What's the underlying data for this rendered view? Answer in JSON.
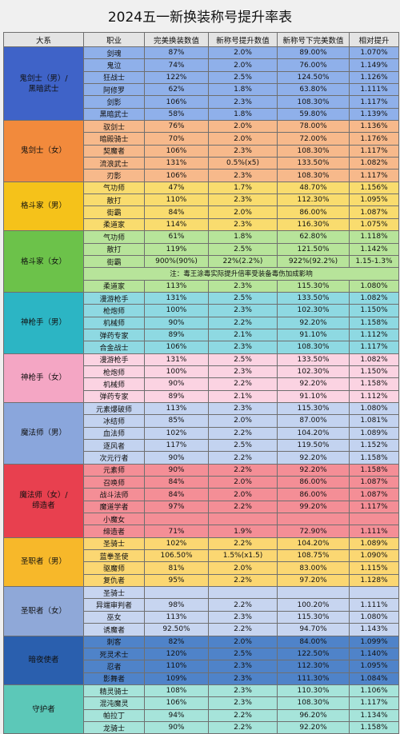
{
  "title": "2024五一新换装称号提升率表",
  "headers": [
    "大系",
    "职业",
    "完美换装数值",
    "新称号提升数值",
    "新称号下完美数值",
    "相对提升"
  ],
  "groups": [
    {
      "name": "鬼剑士（男）/\n黑暗武士",
      "group_color": "#3f63c8",
      "row_color": "#8fb0ea",
      "rows": [
        [
          "剑魂",
          "87%",
          "2.0%",
          "89.00%",
          "1.070%"
        ],
        [
          "鬼泣",
          "74%",
          "2.0%",
          "76.00%",
          "1.149%"
        ],
        [
          "狂战士",
          "122%",
          "2.5%",
          "124.50%",
          "1.126%"
        ],
        [
          "阿修罗",
          "62%",
          "1.8%",
          "63.80%",
          "1.111%"
        ],
        [
          "剑影",
          "106%",
          "2.3%",
          "108.30%",
          "1.117%"
        ],
        [
          "黑暗武士",
          "58%",
          "1.8%",
          "59.80%",
          "1.139%"
        ]
      ]
    },
    {
      "name": "鬼剑士（女）",
      "group_color": "#f28a3c",
      "row_color": "#f7b98b",
      "rows": [
        [
          "驭剑士",
          "76%",
          "2.0%",
          "78.00%",
          "1.136%"
        ],
        [
          "暗殿骑士",
          "70%",
          "2.0%",
          "72.00%",
          "1.176%"
        ],
        [
          "契魔者",
          "106%",
          "2.3%",
          "108.30%",
          "1.117%"
        ],
        [
          "流浪武士",
          "131%",
          "0.5%(x5)",
          "133.50%",
          "1.082%"
        ],
        [
          "刃影",
          "106%",
          "2.3%",
          "108.30%",
          "1.117%"
        ]
      ]
    },
    {
      "name": "格斗家（男）",
      "group_color": "#f5c21a",
      "row_color": "#f9dc6e",
      "rows": [
        [
          "气功师",
          "47%",
          "1.7%",
          "48.70%",
          "1.156%"
        ],
        [
          "散打",
          "110%",
          "2.3%",
          "112.30%",
          "1.095%"
        ],
        [
          "街霸",
          "84%",
          "2.0%",
          "86.00%",
          "1.087%"
        ],
        [
          "柔道家",
          "114%",
          "2.3%",
          "116.30%",
          "1.075%"
        ]
      ]
    },
    {
      "name": "格斗家（女）",
      "group_color": "#6cc24a",
      "row_color": "#b7e49a",
      "rows": [
        [
          "气功师",
          "61%",
          "1.8%",
          "62.80%",
          "1.118%"
        ],
        [
          "散打",
          "119%",
          "2.5%",
          "121.50%",
          "1.142%"
        ],
        [
          "街霸",
          "900%(90%)",
          "22%(2.2%)",
          "922%(92.2%)",
          "1.15-1.3%"
        ],
        {
          "note": "注：毒王涂毒实际提升倍率受装备毒伤加成影响"
        },
        [
          "柔道家",
          "113%",
          "2.3%",
          "115.30%",
          "1.080%"
        ]
      ]
    },
    {
      "name": "神枪手（男）",
      "group_color": "#2cb5c4",
      "row_color": "#8ed9e2",
      "rows": [
        [
          "漫游枪手",
          "131%",
          "2.5%",
          "133.50%",
          "1.082%"
        ],
        [
          "枪炮师",
          "100%",
          "2.3%",
          "102.30%",
          "1.150%"
        ],
        [
          "机械师",
          "90%",
          "2.2%",
          "92.20%",
          "1.158%"
        ],
        [
          "弹药专家",
          "89%",
          "2.1%",
          "91.10%",
          "1.112%"
        ],
        [
          "合金战士",
          "106%",
          "2.3%",
          "108.30%",
          "1.117%"
        ]
      ]
    },
    {
      "name": "神枪手（女）",
      "group_color": "#f4a6c4",
      "row_color": "#fbd3e2",
      "rows": [
        [
          "漫游枪手",
          "131%",
          "2.5%",
          "133.50%",
          "1.082%"
        ],
        [
          "枪炮师",
          "100%",
          "2.3%",
          "102.30%",
          "1.150%"
        ],
        [
          "机械师",
          "90%",
          "2.2%",
          "92.20%",
          "1.158%"
        ],
        [
          "弹药专家",
          "89%",
          "2.1%",
          "91.10%",
          "1.112%"
        ]
      ]
    },
    {
      "name": "魔法师（男）",
      "group_color": "#8aa6dc",
      "row_color": "#c3d3f0",
      "rows": [
        [
          "元素爆破师",
          "113%",
          "2.3%",
          "115.30%",
          "1.080%"
        ],
        [
          "冰结师",
          "85%",
          "2.0%",
          "87.00%",
          "1.081%"
        ],
        [
          "血法师",
          "102%",
          "2.2%",
          "104.20%",
          "1.089%"
        ],
        [
          "逐风者",
          "117%",
          "2.5%",
          "119.50%",
          "1.152%"
        ],
        [
          "次元行者",
          "90%",
          "2.2%",
          "92.20%",
          "1.158%"
        ]
      ]
    },
    {
      "name": "魔法师（女）/\n缔造者",
      "group_color": "#e8404f",
      "row_color": "#f48e96",
      "rows": [
        [
          "元素师",
          "90%",
          "2.2%",
          "92.20%",
          "1.158%"
        ],
        [
          "召唤师",
          "84%",
          "2.0%",
          "86.00%",
          "1.087%"
        ],
        [
          "战斗法师",
          "84%",
          "2.0%",
          "86.00%",
          "1.087%"
        ],
        [
          "魔道学者",
          "97%",
          "2.2%",
          "99.20%",
          "1.117%"
        ],
        [
          "小魔女",
          "",
          "",
          "",
          ""
        ],
        [
          "缔造者",
          "71%",
          "1.9%",
          "72.90%",
          "1.111%"
        ]
      ]
    },
    {
      "name": "圣职者（男）",
      "group_color": "#f7b82a",
      "row_color": "#fbd772",
      "rows": [
        [
          "圣骑士",
          "102%",
          "2.2%",
          "104.20%",
          "1.089%"
        ],
        [
          "蓝拳圣使",
          "106.50%",
          "1.5%(x1.5)",
          "108.75%",
          "1.090%"
        ],
        [
          "驱魔师",
          "81%",
          "2.0%",
          "83.00%",
          "1.115%"
        ],
        [
          "复仇者",
          "95%",
          "2.2%",
          "97.20%",
          "1.128%"
        ]
      ]
    },
    {
      "name": "圣职者（女）",
      "group_color": "#8fa8d8",
      "row_color": "#c7d5f0",
      "rows": [
        [
          "圣骑士",
          "",
          "",
          "",
          ""
        ],
        [
          "异端审判者",
          "98%",
          "2.2%",
          "100.20%",
          "1.111%"
        ],
        [
          "巫女",
          "113%",
          "2.3%",
          "115.30%",
          "1.080%"
        ],
        [
          "诱魔者",
          "92.50%",
          "2.2%",
          "94.70%",
          "1.143%"
        ]
      ]
    },
    {
      "name": "暗夜使者",
      "group_color": "#2a5fae",
      "row_color": "#4f83c9",
      "rows": [
        [
          "刺客",
          "82%",
          "2.0%",
          "84.00%",
          "1.099%"
        ],
        [
          "死灵术士",
          "120%",
          "2.5%",
          "122.50%",
          "1.140%"
        ],
        [
          "忍者",
          "110%",
          "2.3%",
          "112.30%",
          "1.095%"
        ],
        [
          "影舞者",
          "109%",
          "2.3%",
          "111.30%",
          "1.084%"
        ]
      ]
    },
    {
      "name": "守护者",
      "group_color": "#5cc8b8",
      "row_color": "#a6e4da",
      "rows": [
        [
          "精灵骑士",
          "108%",
          "2.3%",
          "110.30%",
          "1.106%"
        ],
        [
          "混沌魔灵",
          "106%",
          "2.3%",
          "108.30%",
          "1.117%"
        ],
        [
          "帕拉丁",
          "94%",
          "2.2%",
          "96.20%",
          "1.134%"
        ],
        [
          "龙骑士",
          "90%",
          "2.2%",
          "92.20%",
          "1.158%"
        ]
      ]
    }
  ]
}
